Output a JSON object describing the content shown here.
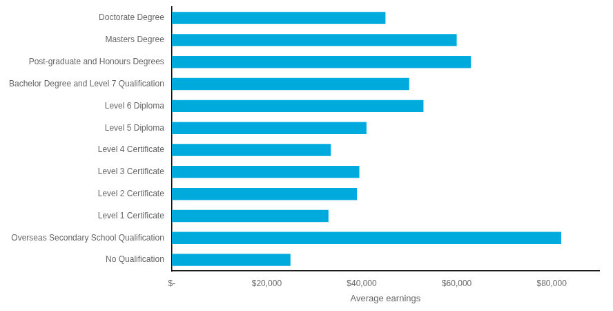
{
  "chart_data": {
    "type": "bar",
    "orientation": "horizontal",
    "categories": [
      "No Qualification",
      "Overseas Secondary School Qualification",
      "Level 1 Certificate",
      "Level 2 Certificate",
      "Level 3 Certificate",
      "Level 4 Certificate",
      "Level 5 Diploma",
      "Level 6 Diploma",
      "Bachelor Degree and Level 7 Qualification",
      "Post-graduate and Honours Degrees",
      "Masters Degree",
      "Doctorate Degree"
    ],
    "values": [
      25000,
      82000,
      33000,
      39000,
      39500,
      33500,
      41000,
      53000,
      50000,
      63000,
      60000,
      45000
    ],
    "color": "#00AADD",
    "xlabel": "Average earnings",
    "xlim": [
      0,
      90000
    ],
    "xticks": [
      {
        "value": 0,
        "label": "$-"
      },
      {
        "value": 20000,
        "label": "$20,000"
      },
      {
        "value": 40000,
        "label": "$40,000"
      },
      {
        "value": 60000,
        "label": "$60,000"
      },
      {
        "value": 80000,
        "label": "$80,000"
      }
    ],
    "grid": false
  }
}
